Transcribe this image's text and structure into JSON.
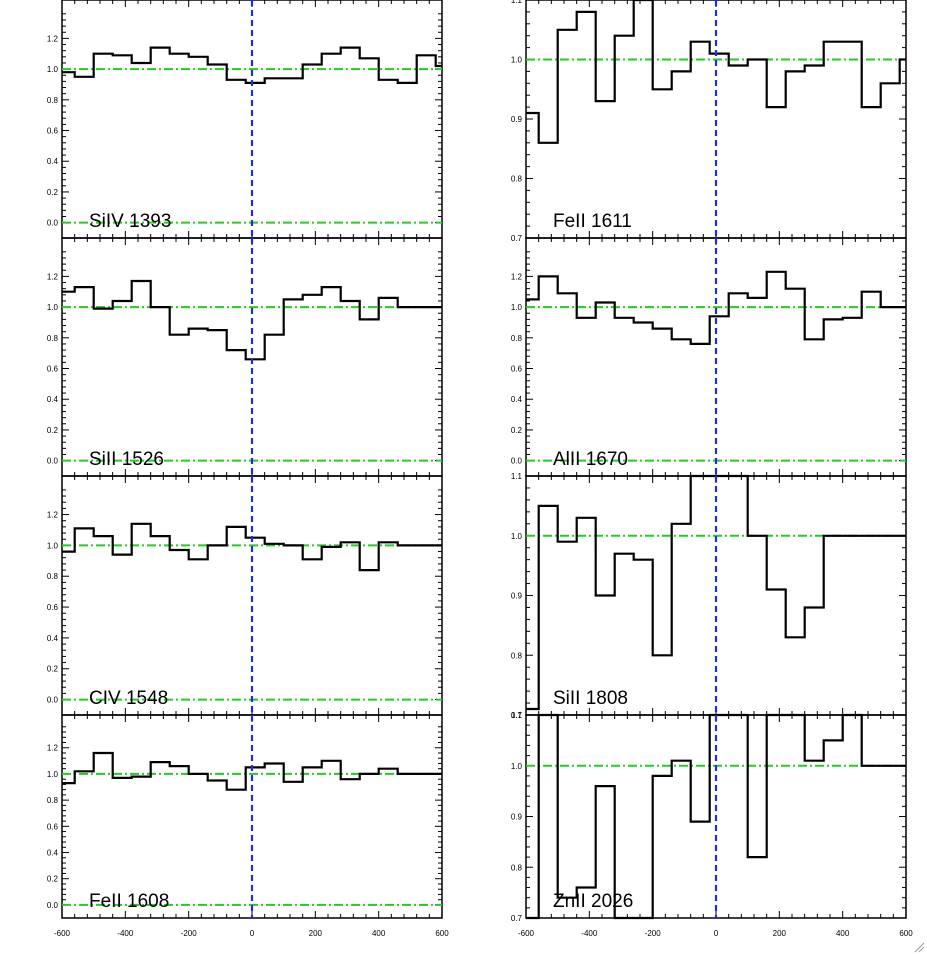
{
  "colors": {
    "axes": "#000000",
    "spectrum": "#000000",
    "continuum_and_zero": "#22cc22",
    "zero_velocity": "#1f2fd6",
    "background": "#ffffff"
  },
  "chart_data": [
    {
      "type": "line",
      "step": true,
      "label": "SiIV 1393",
      "xlim": [
        -600,
        600
      ],
      "ylim": [
        -0.1,
        1.45
      ],
      "yticks": [
        0.0,
        0.2,
        0.4,
        0.6,
        0.8,
        1.0,
        1.2
      ],
      "ytick_labels": [
        "0.0",
        "0.2",
        "0.4",
        "0.6",
        "0.8",
        "1.0",
        "1.2"
      ],
      "xtick_labels": [],
      "ref_lines": [
        1.0,
        0.0
      ],
      "x": [
        -620,
        -560,
        -500,
        -440,
        -380,
        -320,
        -260,
        -200,
        -140,
        -80,
        -20,
        40,
        100,
        160,
        220,
        280,
        340,
        400,
        460,
        520,
        580
      ],
      "y": [
        0.98,
        0.95,
        1.1,
        1.09,
        1.04,
        1.14,
        1.1,
        1.08,
        1.03,
        0.93,
        0.91,
        0.94,
        0.94,
        1.03,
        1.1,
        1.14,
        1.07,
        0.93,
        0.91,
        1.09,
        1.02
      ]
    },
    {
      "type": "line",
      "step": true,
      "label": "FeII 1611",
      "xlim": [
        -600,
        600
      ],
      "ylim": [
        0.7,
        1.1
      ],
      "yticks": [
        0.7,
        0.8,
        0.9,
        1.0,
        1.1
      ],
      "ytick_labels": [
        "0.7",
        "0.8",
        "0.9",
        "1.0",
        "1.1"
      ],
      "xtick_labels": [],
      "ref_lines": [
        1.0
      ],
      "x": [
        -620,
        -560,
        -500,
        -440,
        -380,
        -320,
        -260,
        -200,
        -140,
        -80,
        -20,
        40,
        100,
        160,
        220,
        280,
        340,
        400,
        460,
        520,
        580
      ],
      "y": [
        0.91,
        0.86,
        1.05,
        1.08,
        0.93,
        1.04,
        1.15,
        0.95,
        0.98,
        1.03,
        1.01,
        0.99,
        1.0,
        0.92,
        0.98,
        0.99,
        1.03,
        1.03,
        0.92,
        0.96,
        1.0
      ]
    },
    {
      "type": "line",
      "step": true,
      "label": "SiII 1526",
      "xlim": [
        -600,
        600
      ],
      "ylim": [
        -0.1,
        1.45
      ],
      "yticks": [
        0.0,
        0.2,
        0.4,
        0.6,
        0.8,
        1.0,
        1.2
      ],
      "ytick_labels": [
        "0.0",
        "0.2",
        "0.4",
        "0.6",
        "0.8",
        "1.0",
        "1.2"
      ],
      "xtick_labels": [],
      "ref_lines": [
        1.0,
        0.0
      ],
      "x": [
        -620,
        -560,
        -500,
        -440,
        -380,
        -320,
        -260,
        -200,
        -140,
        -80,
        -20,
        40,
        100,
        160,
        220,
        280,
        340,
        400,
        460,
        520,
        580
      ],
      "y": [
        1.1,
        1.13,
        0.99,
        1.04,
        1.17,
        1.0,
        0.82,
        0.86,
        0.85,
        0.72,
        0.66,
        0.82,
        1.05,
        1.08,
        1.13,
        1.04,
        0.92,
        1.06,
        1.0,
        1.0,
        1.0
      ]
    },
    {
      "type": "line",
      "step": true,
      "label": "AlII 1670",
      "xlim": [
        -600,
        600
      ],
      "ylim": [
        -0.1,
        1.45
      ],
      "yticks": [
        0.0,
        0.2,
        0.4,
        0.6,
        0.8,
        1.0,
        1.2
      ],
      "ytick_labels": [
        "0.0",
        "0.2",
        "0.4",
        "0.6",
        "0.8",
        "1.0",
        "1.2"
      ],
      "xtick_labels": [],
      "ref_lines": [
        1.0,
        0.0
      ],
      "x": [
        -620,
        -560,
        -500,
        -440,
        -380,
        -320,
        -260,
        -200,
        -140,
        -80,
        -20,
        40,
        100,
        160,
        220,
        280,
        340,
        400,
        460,
        520,
        580
      ],
      "y": [
        1.05,
        1.2,
        1.09,
        0.93,
        1.03,
        0.93,
        0.9,
        0.86,
        0.79,
        0.76,
        0.94,
        1.09,
        1.06,
        1.23,
        1.12,
        0.79,
        0.92,
        0.93,
        1.1,
        1.0,
        1.0
      ]
    },
    {
      "type": "line",
      "step": true,
      "label": "CIV 1548",
      "xlim": [
        -600,
        600
      ],
      "ylim": [
        -0.1,
        1.45
      ],
      "yticks": [
        0.0,
        0.2,
        0.4,
        0.6,
        0.8,
        1.0,
        1.2
      ],
      "ytick_labels": [
        "0.0",
        "0.2",
        "0.4",
        "0.6",
        "0.8",
        "1.0",
        "1.2"
      ],
      "xtick_labels": [],
      "ref_lines": [
        1.0,
        0.0
      ],
      "x": [
        -620,
        -560,
        -500,
        -440,
        -380,
        -320,
        -260,
        -200,
        -140,
        -80,
        -20,
        40,
        100,
        160,
        220,
        280,
        340,
        400,
        460,
        520,
        580
      ],
      "y": [
        0.96,
        1.11,
        1.06,
        0.94,
        1.14,
        1.06,
        0.97,
        0.91,
        1.0,
        1.12,
        1.05,
        1.01,
        1.0,
        0.91,
        0.99,
        1.02,
        0.84,
        1.02,
        1.0,
        1.0,
        1.0
      ]
    },
    {
      "type": "line",
      "step": true,
      "label": "SiII 1808",
      "xlim": [
        -600,
        600
      ],
      "ylim": [
        0.7,
        1.1
      ],
      "yticks": [
        0.7,
        0.8,
        0.9,
        1.0,
        1.1
      ],
      "ytick_labels": [
        "0.7",
        "0.8",
        "0.9",
        "1.0",
        "1.1"
      ],
      "xtick_labels": [],
      "ref_lines": [
        1.0
      ],
      "x": [
        -620,
        -560,
        -500,
        -440,
        -380,
        -320,
        -260,
        -200,
        -140,
        -80,
        -20,
        40,
        100,
        160,
        220,
        280,
        340,
        400,
        460,
        520,
        580
      ],
      "y": [
        0.71,
        1.05,
        0.99,
        1.03,
        0.9,
        0.97,
        0.96,
        0.8,
        1.02,
        1.15,
        1.2,
        1.12,
        1.0,
        0.91,
        0.83,
        0.88,
        1.0,
        1.0,
        1.0,
        1.0,
        1.0
      ]
    },
    {
      "type": "line",
      "step": true,
      "label": "FeII 1608",
      "xlim": [
        -600,
        600
      ],
      "ylim": [
        -0.1,
        1.45
      ],
      "yticks": [
        0.0,
        0.2,
        0.4,
        0.6,
        0.8,
        1.0,
        1.2
      ],
      "ytick_labels": [
        "0.0",
        "0.2",
        "0.4",
        "0.6",
        "0.8",
        "1.0",
        "1.2"
      ],
      "xtick_labels": [
        "-600",
        "-400",
        "-200",
        "0",
        "200",
        "400",
        "600"
      ],
      "xticks": [
        -600,
        -400,
        -200,
        0,
        200,
        400,
        600
      ],
      "ref_lines": [
        1.0,
        0.0
      ],
      "x": [
        -620,
        -560,
        -500,
        -440,
        -380,
        -320,
        -260,
        -200,
        -140,
        -80,
        -20,
        40,
        100,
        160,
        220,
        280,
        340,
        400,
        460,
        520,
        580
      ],
      "y": [
        0.93,
        1.02,
        1.16,
        0.97,
        0.98,
        1.09,
        1.06,
        1.0,
        0.95,
        0.88,
        1.05,
        1.08,
        0.94,
        1.05,
        1.1,
        0.96,
        1.0,
        1.04,
        1.0,
        1.0,
        1.0
      ]
    },
    {
      "type": "line",
      "step": true,
      "label": "ZnII 2026",
      "xlim": [
        -600,
        600
      ],
      "ylim": [
        0.7,
        1.1
      ],
      "yticks": [
        0.7,
        0.8,
        0.9,
        1.0,
        1.1
      ],
      "ytick_labels": [
        "0.7",
        "0.8",
        "0.9",
        "1.0",
        "1.1"
      ],
      "xtick_labels": [
        "-600",
        "-400",
        "-200",
        "0",
        "200",
        "400",
        "600"
      ],
      "xticks": [
        -600,
        -400,
        -200,
        0,
        200,
        400,
        600
      ],
      "ref_lines": [
        1.0
      ],
      "x": [
        -620,
        -560,
        -500,
        -440,
        -380,
        -320,
        -260,
        -200,
        -140,
        -80,
        -20,
        40,
        100,
        160,
        220,
        280,
        340,
        400,
        460,
        520,
        580
      ],
      "y": [
        0.6,
        1.15,
        0.74,
        0.76,
        0.96,
        0.6,
        0.6,
        0.98,
        1.01,
        0.89,
        1.1,
        1.11,
        0.82,
        1.11,
        1.1,
        1.01,
        1.05,
        1.11,
        1.0,
        1.0,
        1.0
      ]
    }
  ]
}
